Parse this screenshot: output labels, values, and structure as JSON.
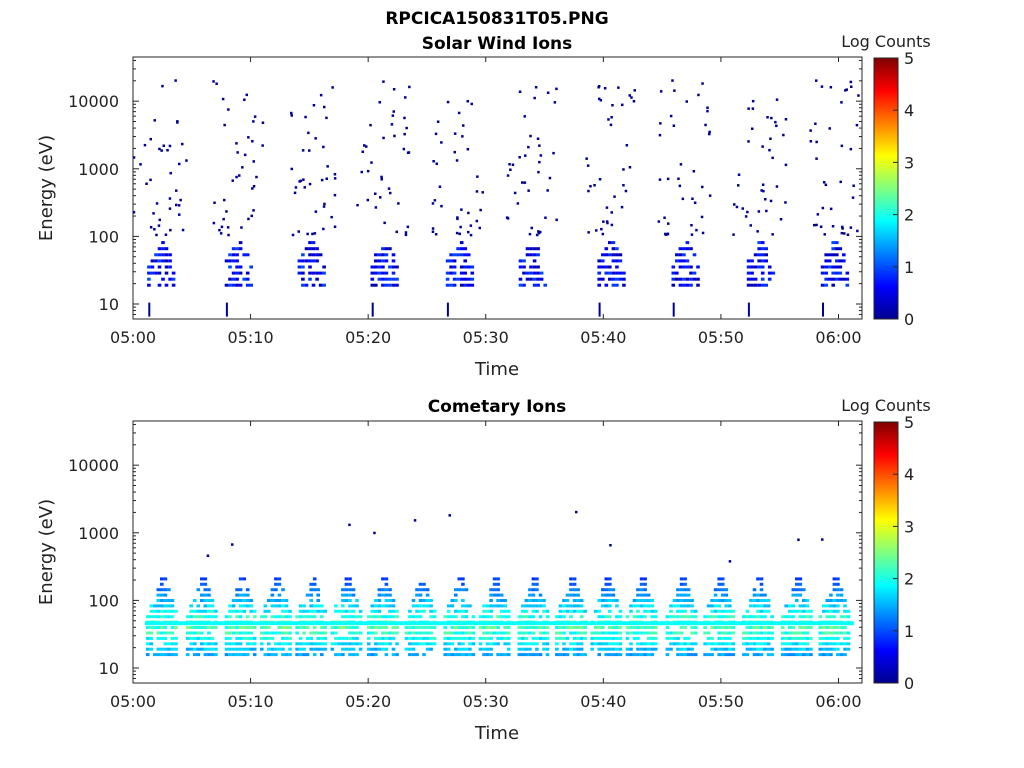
{
  "figure_title": "RPCICA150831T05.PNG",
  "chart_data": [
    {
      "type": "heatmap",
      "title": "Solar Wind Ions",
      "xlabel": "Time",
      "ylabel": "Energy (eV)",
      "x_ticks": [
        "05:00",
        "05:10",
        "05:20",
        "05:30",
        "05:40",
        "05:50",
        "06:00"
      ],
      "y_ticks": [
        "10",
        "100",
        "1000",
        "10000"
      ],
      "y_scale": "log",
      "y_range": [
        6,
        45000
      ],
      "x_range_minutes": [
        0,
        62
      ],
      "colorbar": {
        "label": "Log Counts",
        "ticks": [
          "0",
          "1",
          "2",
          "3",
          "4",
          "5"
        ],
        "range": [
          0,
          5
        ],
        "colormap": "jet"
      },
      "bursts_center_minutes": [
        2.2,
        8.8,
        15.0,
        21.2,
        27.6,
        33.8,
        40.5,
        46.8,
        53.2,
        59.5
      ],
      "core_energy_range_eV": [
        18,
        100
      ],
      "core_log_counts": [
        0.2,
        1.0
      ],
      "scatter_energy_range_eV": [
        100,
        20000
      ],
      "scatter_log_counts": 0.1
    },
    {
      "type": "heatmap",
      "title": "Cometary Ions",
      "xlabel": "Time",
      "ylabel": "Energy (eV)",
      "x_ticks": [
        "05:00",
        "05:10",
        "05:20",
        "05:30",
        "05:40",
        "05:50",
        "06:00"
      ],
      "y_ticks": [
        "10",
        "100",
        "1000",
        "10000"
      ],
      "y_scale": "log",
      "y_range": [
        6,
        45000
      ],
      "x_range_minutes": [
        0,
        62
      ],
      "colorbar": {
        "label": "Log Counts",
        "ticks": [
          "0",
          "1",
          "2",
          "3",
          "4",
          "5"
        ],
        "range": [
          0,
          5
        ],
        "colormap": "jet"
      },
      "bursts_center_minutes": [
        2.3,
        5.7,
        9.0,
        12.0,
        15.0,
        18.0,
        21.1,
        24.3,
        27.6,
        30.6,
        33.9,
        37.1,
        40.1,
        43.1,
        46.5,
        49.7,
        53.0,
        56.3,
        59.5
      ],
      "core_energy_range_eV": [
        15,
        250
      ],
      "core_log_counts": [
        0.5,
        2.6
      ],
      "band_energy_eV": 40,
      "scatter_energy_range_eV": [
        300,
        2500
      ],
      "scatter_log_counts": 0.1
    }
  ]
}
